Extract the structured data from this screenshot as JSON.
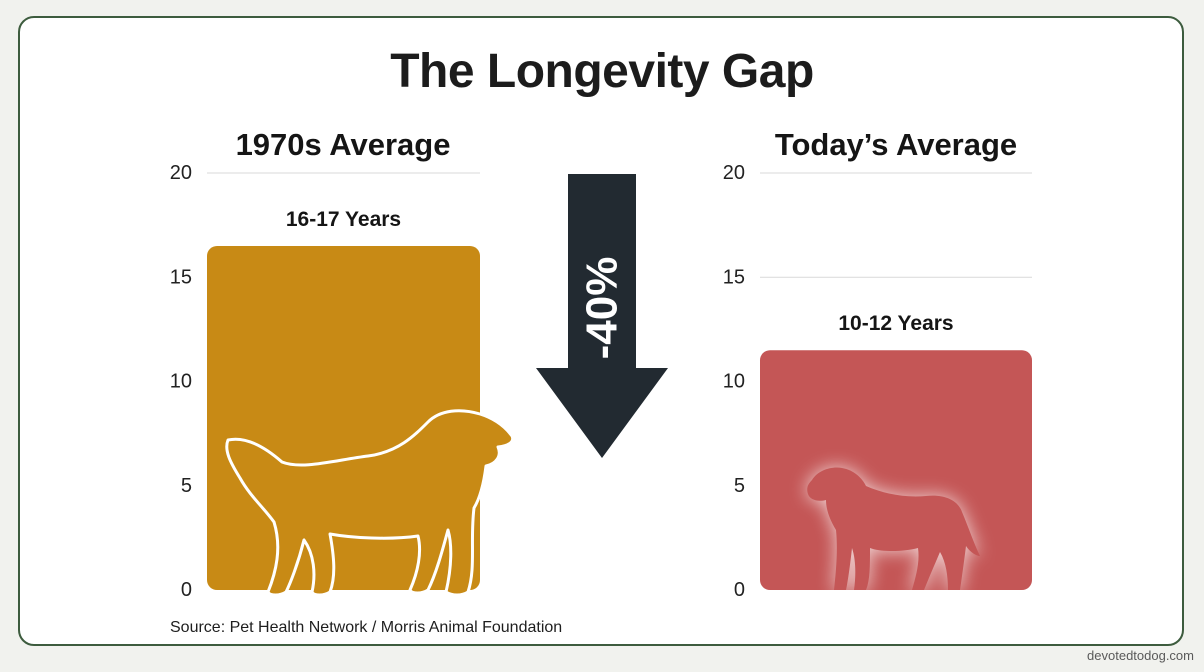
{
  "title": "The Longevity Gap",
  "source": "Source: Pet Health Network / Morris Animal Foundation",
  "watermark": "devotedtodog.com",
  "arrow_label": "-40%",
  "icons": [
    "dog-silhouette-icon",
    "down-arrow-icon"
  ],
  "colors": {
    "bar_1970s": "#c88a15",
    "bar_today": "#c45656",
    "arrow": "#222a31",
    "border": "#3d5c3e"
  },
  "chart_data": [
    {
      "type": "bar",
      "title": "1970s Average",
      "categories": [
        "1970s Average"
      ],
      "values": [
        16.5
      ],
      "range": [
        16,
        17
      ],
      "data_label": "16-17 Years",
      "yticks": [
        0,
        5,
        10,
        15,
        20
      ],
      "ylim": [
        0,
        20
      ],
      "grid": true,
      "color": "#c88a15"
    },
    {
      "type": "bar",
      "title": "Today’s Average",
      "categories": [
        "Today’s Average"
      ],
      "values": [
        11.5
      ],
      "range": [
        10,
        12
      ],
      "data_label": "10-12 Years",
      "yticks": [
        0,
        5,
        10,
        15,
        20
      ],
      "ylim": [
        0,
        20
      ],
      "grid": true,
      "color": "#c45656"
    }
  ]
}
